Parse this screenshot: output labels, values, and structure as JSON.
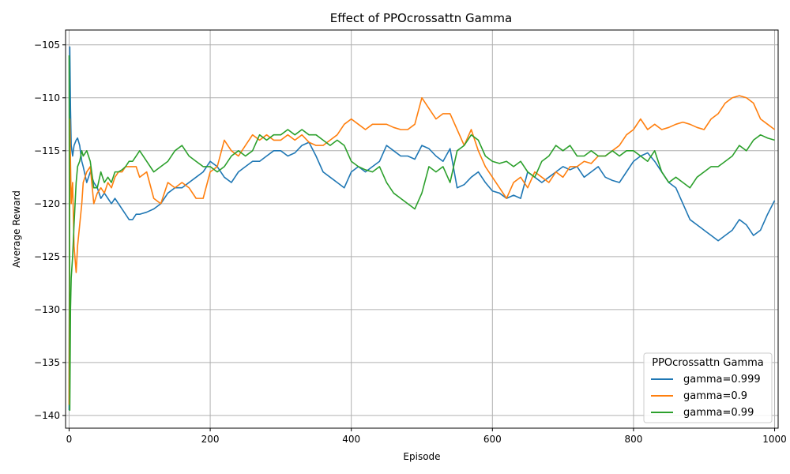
{
  "chart_data": {
    "type": "line",
    "title": "Effect of PPOcrossattn Gamma",
    "xlabel": "Episode",
    "ylabel": "Average Reward",
    "xlim": [
      -5,
      1005
    ],
    "ylim": [
      -141.2,
      -103.6
    ],
    "xticks": [
      0,
      200,
      400,
      600,
      800,
      1000
    ],
    "yticks": [
      -105,
      -110,
      -115,
      -120,
      -125,
      -130,
      -135,
      -140
    ],
    "grid": true,
    "legend": {
      "title": "PPOcrossattn Gamma",
      "placement": "lower-right"
    },
    "series": [
      {
        "name": "gamma=0.999",
        "color": "#1f77b4",
        "x": [
          0,
          1,
          2,
          3,
          5,
          7,
          10,
          12,
          15,
          18,
          20,
          25,
          30,
          35,
          40,
          45,
          50,
          55,
          60,
          65,
          70,
          75,
          80,
          85,
          90,
          95,
          100,
          110,
          120,
          130,
          140,
          150,
          160,
          170,
          180,
          190,
          200,
          210,
          220,
          230,
          240,
          250,
          260,
          270,
          280,
          290,
          300,
          310,
          320,
          330,
          340,
          350,
          360,
          370,
          380,
          390,
          400,
          410,
          420,
          430,
          440,
          450,
          460,
          470,
          480,
          490,
          500,
          510,
          520,
          530,
          540,
          550,
          560,
          570,
          580,
          590,
          600,
          610,
          620,
          630,
          640,
          650,
          660,
          670,
          680,
          690,
          700,
          710,
          720,
          730,
          740,
          750,
          760,
          770,
          780,
          790,
          800,
          810,
          820,
          830,
          840,
          850,
          860,
          870,
          880,
          890,
          900,
          910,
          920,
          930,
          940,
          950,
          960,
          970,
          980,
          990,
          1000
        ],
        "values": [
          -139.5,
          -105.2,
          -111.0,
          -114.5,
          -115.5,
          -114.5,
          -114.0,
          -113.8,
          -114.5,
          -116.0,
          -116.5,
          -118.0,
          -117.0,
          -118.0,
          -118.5,
          -119.5,
          -119.0,
          -119.5,
          -120.0,
          -119.5,
          -120.0,
          -120.5,
          -121.0,
          -121.5,
          -121.5,
          -121.0,
          -121.0,
          -120.8,
          -120.5,
          -120.0,
          -119.0,
          -118.5,
          -118.5,
          -118.0,
          -117.5,
          -117.0,
          -116.0,
          -116.5,
          -117.5,
          -118.0,
          -117.0,
          -116.5,
          -116.0,
          -116.0,
          -115.5,
          -115.0,
          -115.0,
          -115.5,
          -115.2,
          -114.5,
          -114.2,
          -115.5,
          -117.0,
          -117.5,
          -118.0,
          -118.5,
          -117.0,
          -116.5,
          -117.0,
          -116.5,
          -116.0,
          -114.5,
          -115.0,
          -115.5,
          -115.5,
          -115.8,
          -114.5,
          -114.8,
          -115.5,
          -116.0,
          -114.8,
          -118.5,
          -118.2,
          -117.5,
          -117.0,
          -118.0,
          -118.8,
          -119.0,
          -119.5,
          -119.2,
          -119.5,
          -117.0,
          -117.5,
          -118.0,
          -117.5,
          -117.0,
          -116.5,
          -116.8,
          -116.5,
          -117.5,
          -117.0,
          -116.5,
          -117.5,
          -117.8,
          -118.0,
          -117.0,
          -116.0,
          -115.5,
          -115.2,
          -116.0,
          -117.0,
          -118.0,
          -118.5,
          -120.0,
          -121.5,
          -122.0,
          -122.5,
          -123.0,
          -123.5,
          -123.0,
          -122.5,
          -121.5,
          -122.0,
          -123.0,
          -122.5,
          -121.0,
          -119.7
        ]
      },
      {
        "name": "gamma=0.9",
        "color": "#ff7f0e",
        "x": [
          0,
          1,
          2,
          3,
          5,
          7,
          10,
          12,
          15,
          18,
          20,
          25,
          30,
          35,
          40,
          45,
          50,
          55,
          60,
          65,
          70,
          75,
          80,
          85,
          90,
          95,
          100,
          110,
          120,
          130,
          140,
          150,
          160,
          170,
          180,
          190,
          200,
          210,
          220,
          230,
          240,
          250,
          260,
          270,
          280,
          290,
          300,
          310,
          320,
          330,
          340,
          350,
          360,
          370,
          380,
          390,
          400,
          410,
          420,
          430,
          440,
          450,
          460,
          470,
          480,
          490,
          500,
          510,
          520,
          530,
          540,
          550,
          560,
          570,
          580,
          590,
          600,
          610,
          620,
          630,
          640,
          650,
          660,
          670,
          680,
          690,
          700,
          710,
          720,
          730,
          740,
          750,
          760,
          770,
          780,
          790,
          800,
          810,
          820,
          830,
          840,
          850,
          860,
          870,
          880,
          890,
          900,
          910,
          920,
          930,
          940,
          950,
          960,
          970,
          980,
          990,
          1000
        ],
        "values": [
          -139.0,
          -112.0,
          -116.0,
          -120.0,
          -118.0,
          -124.0,
          -126.5,
          -124.0,
          -122.0,
          -120.0,
          -118.0,
          -117.0,
          -116.5,
          -120.0,
          -119.0,
          -118.5,
          -119.0,
          -118.0,
          -118.5,
          -117.5,
          -117.0,
          -117.0,
          -116.5,
          -116.5,
          -116.5,
          -116.5,
          -117.5,
          -117.0,
          -119.5,
          -120.0,
          -118.0,
          -118.5,
          -118.0,
          -118.5,
          -119.5,
          -119.5,
          -117.0,
          -116.5,
          -114.0,
          -115.0,
          -115.5,
          -114.5,
          -113.5,
          -114.0,
          -113.5,
          -114.0,
          -114.0,
          -113.5,
          -114.0,
          -113.5,
          -114.2,
          -114.5,
          -114.5,
          -114.0,
          -113.5,
          -112.5,
          -112.0,
          -112.5,
          -113.0,
          -112.5,
          -112.5,
          -112.5,
          -112.8,
          -113.0,
          -113.0,
          -112.5,
          -110.0,
          -111.0,
          -112.0,
          -111.5,
          -111.5,
          -113.0,
          -114.5,
          -113.0,
          -115.0,
          -116.5,
          -117.5,
          -118.5,
          -119.5,
          -118.0,
          -117.5,
          -118.5,
          -117.0,
          -117.5,
          -118.0,
          -117.0,
          -117.5,
          -116.5,
          -116.5,
          -116.0,
          -116.2,
          -115.5,
          -115.5,
          -115.0,
          -114.5,
          -113.5,
          -113.0,
          -112.0,
          -113.0,
          -112.5,
          -113.0,
          -112.8,
          -112.5,
          -112.3,
          -112.5,
          -112.8,
          -113.0,
          -112.0,
          -111.5,
          -110.5,
          -110.0,
          -109.8,
          -110.0,
          -110.5,
          -112.0,
          -112.5,
          -113.0
        ]
      },
      {
        "name": "gamma=0.99",
        "color": "#2ca02c",
        "x": [
          0,
          1,
          2,
          3,
          5,
          7,
          10,
          12,
          15,
          18,
          20,
          25,
          30,
          35,
          40,
          45,
          50,
          55,
          60,
          65,
          70,
          75,
          80,
          85,
          90,
          95,
          100,
          110,
          120,
          130,
          140,
          150,
          160,
          170,
          180,
          190,
          200,
          210,
          220,
          230,
          240,
          250,
          260,
          270,
          280,
          290,
          300,
          310,
          320,
          330,
          340,
          350,
          360,
          370,
          380,
          390,
          400,
          410,
          420,
          430,
          440,
          450,
          460,
          470,
          480,
          490,
          500,
          510,
          520,
          530,
          540,
          550,
          560,
          570,
          580,
          590,
          600,
          610,
          620,
          630,
          640,
          650,
          660,
          670,
          680,
          690,
          700,
          710,
          720,
          730,
          740,
          750,
          760,
          770,
          780,
          790,
          800,
          810,
          820,
          830,
          840,
          850,
          860,
          870,
          880,
          890,
          900,
          910,
          920,
          930,
          940,
          950,
          960,
          970,
          980,
          990,
          1000
        ],
        "values": [
          -106.0,
          -139.5,
          -130.0,
          -127.0,
          -125.0,
          -122.0,
          -118.0,
          -116.5,
          -116.0,
          -115.0,
          -115.5,
          -115.0,
          -116.0,
          -118.5,
          -118.5,
          -117.0,
          -118.0,
          -117.5,
          -118.0,
          -117.0,
          -117.0,
          -116.8,
          -116.5,
          -116.0,
          -116.0,
          -115.5,
          -115.0,
          -116.0,
          -117.0,
          -116.5,
          -116.0,
          -115.0,
          -114.5,
          -115.5,
          -116.0,
          -116.5,
          -116.5,
          -117.0,
          -116.5,
          -115.5,
          -115.0,
          -115.5,
          -115.0,
          -113.5,
          -114.0,
          -113.5,
          -113.5,
          -113.0,
          -113.5,
          -113.0,
          -113.5,
          -113.5,
          -114.0,
          -114.5,
          -114.0,
          -114.5,
          -116.0,
          -116.5,
          -116.8,
          -117.0,
          -116.5,
          -118.0,
          -119.0,
          -119.5,
          -120.0,
          -120.5,
          -119.0,
          -116.5,
          -117.0,
          -116.5,
          -118.0,
          -115.0,
          -114.5,
          -113.5,
          -114.0,
          -115.5,
          -116.0,
          -116.2,
          -116.0,
          -116.5,
          -116.0,
          -117.0,
          -117.5,
          -116.0,
          -115.5,
          -114.5,
          -115.0,
          -114.5,
          -115.5,
          -115.5,
          -115.0,
          -115.5,
          -115.5,
          -115.0,
          -115.5,
          -115.0,
          -115.0,
          -115.5,
          -116.0,
          -115.0,
          -117.0,
          -118.0,
          -117.5,
          -118.0,
          -118.5,
          -117.5,
          -117.0,
          -116.5,
          -116.5,
          -116.0,
          -115.5,
          -114.5,
          -115.0,
          -114.0,
          -113.5,
          -113.8,
          -114.0
        ]
      }
    ]
  }
}
